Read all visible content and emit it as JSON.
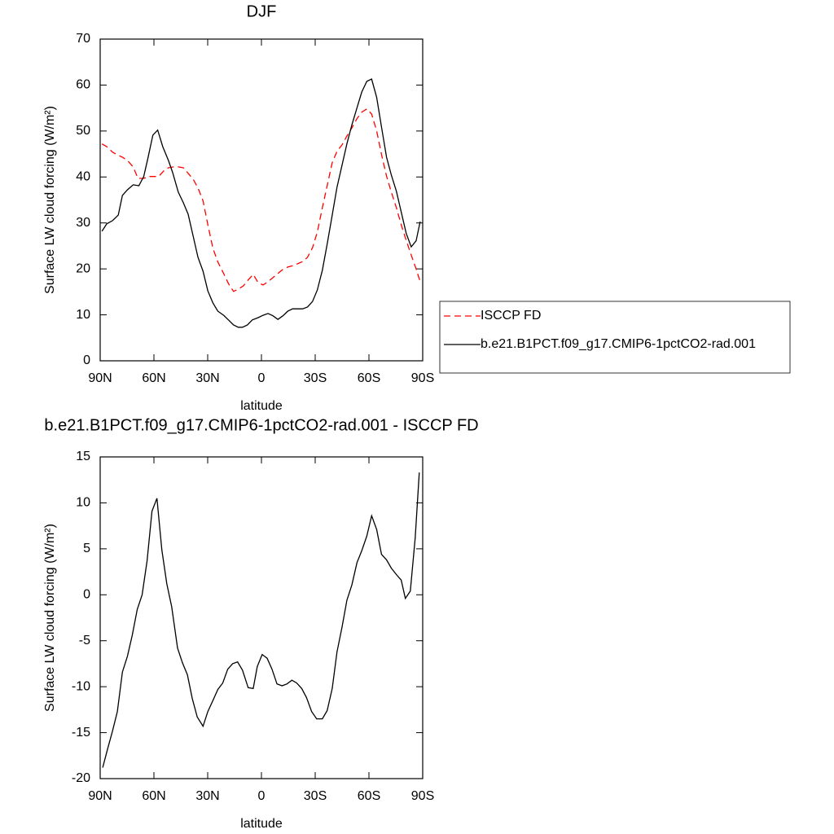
{
  "chart_data": [
    {
      "type": "line",
      "title": "DJF",
      "xlabel": "latitude",
      "ylabel": "Surface LW cloud forcing (W/m²)",
      "xlim": [
        90,
        -90
      ],
      "xticks": [
        {
          "value": 90,
          "label": "90N"
        },
        {
          "value": 60,
          "label": "60N"
        },
        {
          "value": 30,
          "label": "30N"
        },
        0,
        {
          "value": -30,
          "label": "30S"
        },
        {
          "value": -60,
          "label": "60S"
        },
        {
          "value": -90,
          "label": "90S"
        }
      ],
      "ylim": [
        0,
        70
      ],
      "yticks": [
        0,
        10,
        20,
        30,
        40,
        50,
        60,
        70
      ],
      "legend": "right",
      "series": [
        {
          "name": "ISCCP FD",
          "color": "#ff0000",
          "line_style": "dashed",
          "x": [
            89,
            86.3,
            83.1,
            79.9,
            77.6,
            74.8,
            71.6,
            68.9,
            65.7,
            62.9,
            60.2,
            57.4,
            54.6,
            51.9,
            49.1,
            46.4,
            43.6,
            40.9,
            38.1,
            35.4,
            32.6,
            29.9,
            27.1,
            24.3,
            21.1,
            18.4,
            15.6,
            12.9,
            10.1,
            7.4,
            4.6,
            1.8,
            -0.9,
            -3.7,
            -6.4,
            -9.2,
            -12.0,
            -14.7,
            -17.4,
            -20.2,
            -23.0,
            -25.7,
            -28.5,
            -31.2,
            -34.0,
            -36.7,
            -39.5,
            -42.2,
            -45.0,
            -47.7,
            -50.5,
            -53.3,
            -56.0,
            -58.8,
            -61.5,
            -64.3,
            -67.0,
            -69.8,
            -72.5,
            -75.3,
            -78.0,
            -80.8,
            -83.6,
            -86.3,
            -88.6
          ],
          "values": [
            47.2,
            46.6,
            45.4,
            44.7,
            44.3,
            43.6,
            42.2,
            39.7,
            39.7,
            40.1,
            40.1,
            40.1,
            41.3,
            42.0,
            42.2,
            42.2,
            42.0,
            40.8,
            39.5,
            37.6,
            34.8,
            29.6,
            24.5,
            21.5,
            19.0,
            16.8,
            15.1,
            15.6,
            16.3,
            17.6,
            18.8,
            17.0,
            16.5,
            17.2,
            18.1,
            19.0,
            19.9,
            20.4,
            20.7,
            21.1,
            21.6,
            22.5,
            24.6,
            28.0,
            33.3,
            38.1,
            43.1,
            45.6,
            47.0,
            48.9,
            50.7,
            52.7,
            54.1,
            54.8,
            53.7,
            50.0,
            44.9,
            40.2,
            36.7,
            33.3,
            29.6,
            26.2,
            23.0,
            20.0,
            17.2
          ]
        },
        {
          "name": "b.e21.B1PCT.f09_g17.CMIP6-1pctCO2-rad.001",
          "color": "#000000",
          "line_style": "solid",
          "x": [
            89,
            86.3,
            83.1,
            79.9,
            77.6,
            74.8,
            71.6,
            68.4,
            65.7,
            63.4,
            60.6,
            57.9,
            55.1,
            51.9,
            49.6,
            46.4,
            43.6,
            40.9,
            38.1,
            35.4,
            32.6,
            29.9,
            27.1,
            24.3,
            21.1,
            18.4,
            15.6,
            12.9,
            10.6,
            7.8,
            5.1,
            1.8,
            -0.9,
            -3.7,
            -6.4,
            -9.2,
            -12.0,
            -14.7,
            -17.4,
            -20.2,
            -23.0,
            -25.7,
            -28.5,
            -31.2,
            -34.0,
            -36.7,
            -39.5,
            -42.2,
            -45.0,
            -47.7,
            -50.5,
            -53.7,
            -56.0,
            -58.8,
            -61.5,
            -64.3,
            -67.0,
            -69.8,
            -72.5,
            -75.3,
            -78.0,
            -80.8,
            -83.6,
            -86.3,
            -88.6
          ],
          "values": [
            28.2,
            29.8,
            30.5,
            31.7,
            36.0,
            37.2,
            38.3,
            38.1,
            40.1,
            44.0,
            49.1,
            50.2,
            46.6,
            43.6,
            41.0,
            36.7,
            34.4,
            31.9,
            27.1,
            22.5,
            19.5,
            15.2,
            12.6,
            10.8,
            9.9,
            8.9,
            7.8,
            7.3,
            7.3,
            7.8,
            8.9,
            9.4,
            9.9,
            10.3,
            9.8,
            9.0,
            9.8,
            10.8,
            11.3,
            11.3,
            11.3,
            11.7,
            12.9,
            15.4,
            19.7,
            25.4,
            31.7,
            37.8,
            42.6,
            47.2,
            51.4,
            55.5,
            58.5,
            60.8,
            61.3,
            57.3,
            50.9,
            44.3,
            40.4,
            36.9,
            32.4,
            27.7,
            24.8,
            26.1,
            30.3
          ]
        }
      ]
    },
    {
      "type": "line",
      "title": "b.e21.B1PCT.f09_g17.CMIP6-1pctCO2-rad.001 - ISCCP FD",
      "xlabel": "latitude",
      "ylabel": "Surface LW cloud forcing (W/m²)",
      "xlim": [
        90,
        -90
      ],
      "xticks": [
        {
          "value": 90,
          "label": "90N"
        },
        {
          "value": 60,
          "label": "60N"
        },
        {
          "value": 30,
          "label": "30N"
        },
        0,
        {
          "value": -30,
          "label": "30S"
        },
        {
          "value": -60,
          "label": "60S"
        },
        {
          "value": -90,
          "label": "90S"
        }
      ],
      "ylim": [
        -20,
        15
      ],
      "yticks": [
        -20,
        -15,
        -10,
        -5,
        0,
        5,
        10,
        15
      ],
      "color": "#000000",
      "x": [
        88.6,
        85.9,
        83.1,
        80.4,
        77.6,
        74.8,
        72.1,
        69.3,
        66.6,
        63.8,
        61.1,
        58.3,
        55.6,
        52.8,
        50.1,
        46.8,
        44.1,
        41.3,
        38.6,
        35.8,
        32.6,
        29.9,
        27.1,
        24.3,
        21.6,
        18.8,
        16.1,
        13.3,
        10.6,
        7.4,
        4.6,
        2.3,
        -0.4,
        -3.2,
        -5.9,
        -8.7,
        -11.5,
        -14.2,
        -17.0,
        -19.7,
        -22.5,
        -25.2,
        -28.0,
        -30.8,
        -34.0,
        -36.7,
        -39.5,
        -42.2,
        -45.0,
        -47.7,
        -50.5,
        -53.3,
        -56.0,
        -58.8,
        -61.5,
        -64.3,
        -67.0,
        -69.8,
        -72.5,
        -75.3,
        -78.0,
        -80.3,
        -83.1,
        -85.8,
        -88.1
      ],
      "values": [
        -18.8,
        -16.8,
        -14.8,
        -12.7,
        -8.4,
        -6.7,
        -4.4,
        -1.6,
        0,
        3.7,
        9.1,
        10.5,
        4.9,
        1.2,
        -1.3,
        -5.8,
        -7.4,
        -8.7,
        -11.3,
        -13.3,
        -14.3,
        -12.7,
        -11.5,
        -10.3,
        -9.6,
        -8.1,
        -7.5,
        -7.3,
        -8.2,
        -10.1,
        -10.2,
        -7.8,
        -6.5,
        -6.9,
        -8.1,
        -9.7,
        -9.9,
        -9.7,
        -9.3,
        -9.6,
        -10.2,
        -11.2,
        -12.7,
        -13.5,
        -13.5,
        -12.6,
        -10.2,
        -6.2,
        -3.5,
        -0.6,
        1.1,
        3.5,
        4.8,
        6.4,
        8.6,
        7.1,
        4.4,
        3.8,
        2.9,
        2.2,
        1.6,
        -0.4,
        0.4,
        6.2,
        13.3
      ]
    }
  ]
}
